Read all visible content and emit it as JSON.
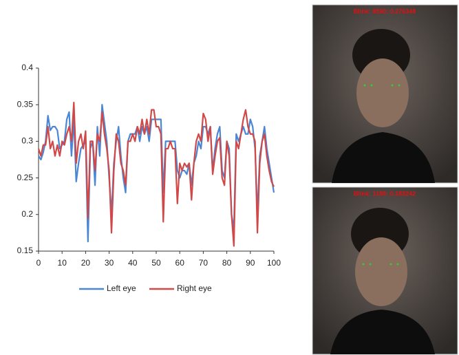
{
  "chart_data": {
    "type": "line",
    "x": [
      0,
      1,
      2,
      3,
      4,
      5,
      6,
      7,
      8,
      9,
      10,
      11,
      12,
      13,
      14,
      15,
      16,
      17,
      18,
      19,
      20,
      21,
      22,
      23,
      24,
      25,
      26,
      27,
      28,
      29,
      30,
      31,
      32,
      33,
      34,
      35,
      36,
      37,
      38,
      39,
      40,
      41,
      42,
      43,
      44,
      45,
      46,
      47,
      48,
      49,
      50,
      51,
      52,
      53,
      54,
      55,
      56,
      57,
      58,
      59,
      60,
      61,
      62,
      63,
      64,
      65,
      66,
      67,
      68,
      69,
      70,
      71,
      72,
      73,
      74,
      75,
      76,
      77,
      78,
      79,
      80,
      81,
      82,
      83,
      84,
      85,
      86,
      87,
      88,
      89,
      90,
      91,
      92,
      93,
      94,
      95,
      96,
      97,
      98,
      99,
      100
    ],
    "series": [
      {
        "name": "Left eye",
        "color": "#4a86d4",
        "values": [
          0.28,
          0.275,
          0.285,
          0.3,
          0.335,
          0.315,
          0.32,
          0.32,
          0.315,
          0.29,
          0.295,
          0.3,
          0.33,
          0.34,
          0.28,
          0.33,
          0.245,
          0.27,
          0.29,
          0.295,
          0.3,
          0.163,
          0.29,
          0.3,
          0.24,
          0.32,
          0.28,
          0.35,
          0.325,
          0.3,
          0.25,
          0.2,
          0.27,
          0.3,
          0.32,
          0.28,
          0.25,
          0.23,
          0.3,
          0.31,
          0.31,
          0.31,
          0.32,
          0.3,
          0.32,
          0.31,
          0.32,
          0.3,
          0.33,
          0.33,
          0.33,
          0.33,
          0.33,
          0.23,
          0.3,
          0.3,
          0.3,
          0.3,
          0.3,
          0.26,
          0.25,
          0.26,
          0.26,
          0.255,
          0.27,
          0.24,
          0.27,
          0.28,
          0.3,
          0.29,
          0.32,
          0.32,
          0.31,
          0.32,
          0.26,
          0.29,
          0.31,
          0.32,
          0.26,
          0.25,
          0.3,
          0.29,
          0.2,
          0.18,
          0.31,
          0.3,
          0.31,
          0.32,
          0.31,
          0.31,
          0.33,
          0.32,
          0.29,
          0.2,
          0.28,
          0.3,
          0.32,
          0.29,
          0.27,
          0.25,
          0.23
        ]
      },
      {
        "name": "Right eye",
        "color": "#d04848",
        "values": [
          0.29,
          0.28,
          0.295,
          0.295,
          0.32,
          0.29,
          0.3,
          0.28,
          0.295,
          0.28,
          0.3,
          0.295,
          0.31,
          0.32,
          0.3,
          0.353,
          0.27,
          0.3,
          0.31,
          0.29,
          0.314,
          0.195,
          0.3,
          0.3,
          0.26,
          0.31,
          0.3,
          0.34,
          0.31,
          0.29,
          0.26,
          0.175,
          0.26,
          0.31,
          0.3,
          0.27,
          0.26,
          0.24,
          0.3,
          0.3,
          0.31,
          0.3,
          0.32,
          0.31,
          0.33,
          0.31,
          0.33,
          0.31,
          0.343,
          0.343,
          0.32,
          0.32,
          0.31,
          0.19,
          0.29,
          0.29,
          0.3,
          0.29,
          0.29,
          0.215,
          0.27,
          0.26,
          0.27,
          0.265,
          0.27,
          0.22,
          0.27,
          0.3,
          0.31,
          0.3,
          0.338,
          0.33,
          0.3,
          0.32,
          0.255,
          0.28,
          0.3,
          0.305,
          0.25,
          0.24,
          0.3,
          0.28,
          0.2,
          0.157,
          0.3,
          0.29,
          0.31,
          0.33,
          0.343,
          0.32,
          0.31,
          0.31,
          0.3,
          0.175,
          0.27,
          0.3,
          0.31,
          0.28,
          0.26,
          0.245,
          0.238
        ]
      }
    ],
    "xlim": [
      0,
      100
    ],
    "xticks": [
      0,
      10,
      20,
      30,
      40,
      50,
      60,
      70,
      80,
      90,
      100
    ],
    "ylim": [
      0.15,
      0.4
    ],
    "yticks": [
      0.15,
      0.2,
      0.25,
      0.3,
      0.35,
      0.4
    ],
    "grid": false,
    "legend": "bottom"
  },
  "photos": [
    {
      "caption": "Blink: 8590: 0.276348"
    },
    {
      "caption": "Blink: 1180: 0.183242"
    }
  ]
}
